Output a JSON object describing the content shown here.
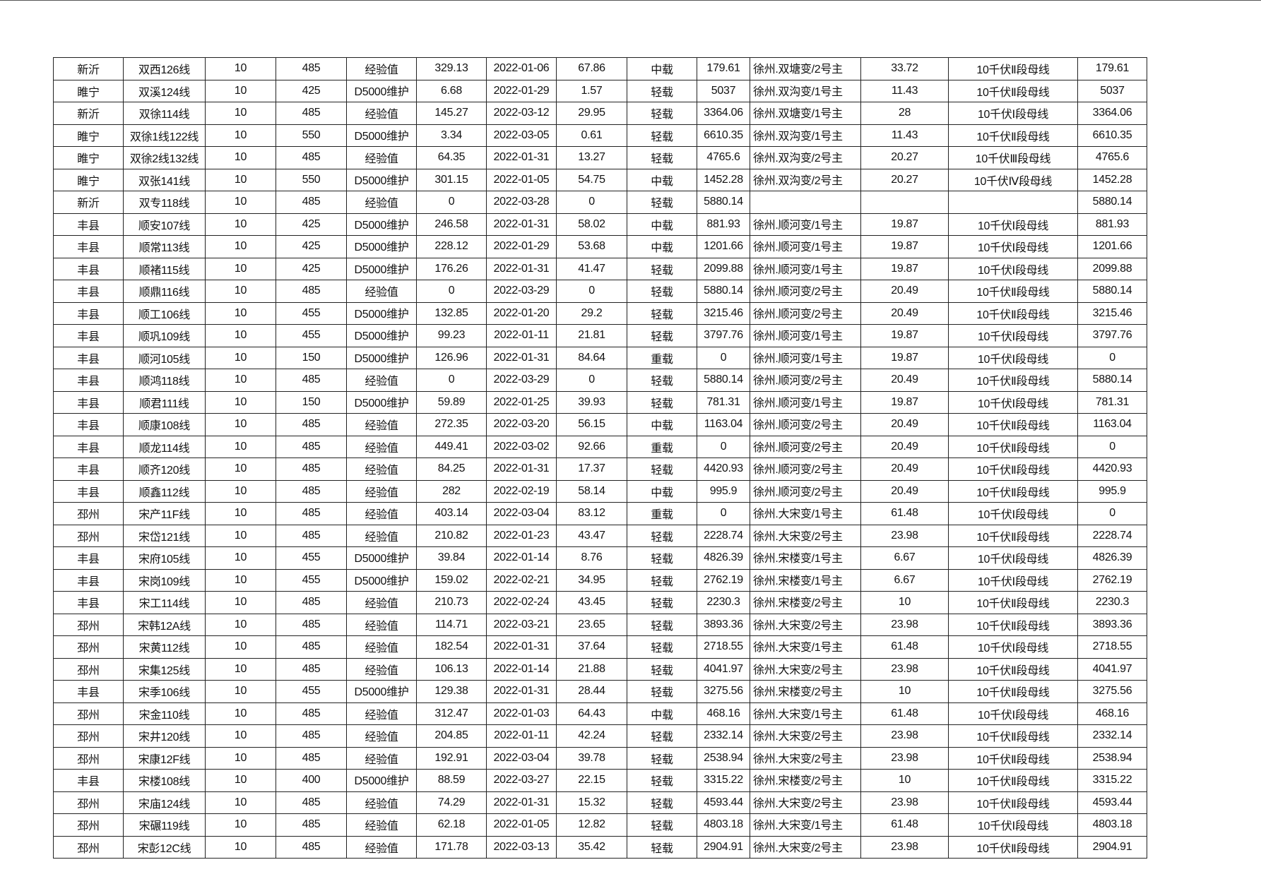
{
  "table": {
    "rows": [
      [
        "新沂",
        "双西126线",
        "10",
        "485",
        "经验值",
        "329.13",
        "2022-01-06",
        "67.86",
        "中载",
        "179.61",
        "徐州.双塘变/2号主",
        "33.72",
        "10千伏Ⅱ段母线",
        "179.61"
      ],
      [
        "睢宁",
        "双溪124线",
        "10",
        "425",
        "D5000维护",
        "6.68",
        "2022-01-29",
        "1.57",
        "轻载",
        "5037",
        "徐州.双沟变/1号主",
        "11.43",
        "10千伏Ⅱ段母线",
        "5037"
      ],
      [
        "新沂",
        "双徐114线",
        "10",
        "485",
        "经验值",
        "145.27",
        "2022-03-12",
        "29.95",
        "轻载",
        "3364.06",
        "徐州.双塘变/1号主",
        "28",
        "10千伏Ⅰ段母线",
        "3364.06"
      ],
      [
        "睢宁",
        "双徐1线122线",
        "10",
        "550",
        "D5000维护",
        "3.34",
        "2022-03-05",
        "0.61",
        "轻载",
        "6610.35",
        "徐州.双沟变/1号主",
        "11.43",
        "10千伏Ⅱ段母线",
        "6610.35"
      ],
      [
        "睢宁",
        "双徐2线132线",
        "10",
        "485",
        "经验值",
        "64.35",
        "2022-01-31",
        "13.27",
        "轻载",
        "4765.6",
        "徐州.双沟变/2号主",
        "20.27",
        "10千伏Ⅲ段母线",
        "4765.6"
      ],
      [
        "睢宁",
        "双张141线",
        "10",
        "550",
        "D5000维护",
        "301.15",
        "2022-01-05",
        "54.75",
        "中载",
        "1452.28",
        "徐州.双沟变/2号主",
        "20.27",
        "10千伏Ⅳ段母线",
        "1452.28"
      ],
      [
        "新沂",
        "双专118线",
        "10",
        "485",
        "经验值",
        "0",
        "2022-03-28",
        "0",
        "轻载",
        "5880.14",
        "",
        "",
        "",
        "5880.14"
      ],
      [
        "丰县",
        "顺安107线",
        "10",
        "425",
        "D5000维护",
        "246.58",
        "2022-01-31",
        "58.02",
        "中载",
        "881.93",
        "徐州.顺河变/1号主",
        "19.87",
        "10千伏Ⅰ段母线",
        "881.93"
      ],
      [
        "丰县",
        "顺常113线",
        "10",
        "425",
        "D5000维护",
        "228.12",
        "2022-01-29",
        "53.68",
        "中载",
        "1201.66",
        "徐州.顺河变/1号主",
        "19.87",
        "10千伏Ⅰ段母线",
        "1201.66"
      ],
      [
        "丰县",
        "顺褚115线",
        "10",
        "425",
        "D5000维护",
        "176.26",
        "2022-01-31",
        "41.47",
        "轻载",
        "2099.88",
        "徐州.顺河变/1号主",
        "19.87",
        "10千伏Ⅰ段母线",
        "2099.88"
      ],
      [
        "丰县",
        "顺鼎116线",
        "10",
        "485",
        "经验值",
        "0",
        "2022-03-29",
        "0",
        "轻载",
        "5880.14",
        "徐州.顺河变/2号主",
        "20.49",
        "10千伏Ⅱ段母线",
        "5880.14"
      ],
      [
        "丰县",
        "顺工106线",
        "10",
        "455",
        "D5000维护",
        "132.85",
        "2022-01-20",
        "29.2",
        "轻载",
        "3215.46",
        "徐州.顺河变/2号主",
        "20.49",
        "10千伏Ⅱ段母线",
        "3215.46"
      ],
      [
        "丰县",
        "顺巩109线",
        "10",
        "455",
        "D5000维护",
        "99.23",
        "2022-01-11",
        "21.81",
        "轻载",
        "3797.76",
        "徐州.顺河变/1号主",
        "19.87",
        "10千伏Ⅰ段母线",
        "3797.76"
      ],
      [
        "丰县",
        "顺河105线",
        "10",
        "150",
        "D5000维护",
        "126.96",
        "2022-01-31",
        "84.64",
        "重载",
        "0",
        "徐州.顺河变/1号主",
        "19.87",
        "10千伏Ⅰ段母线",
        "0"
      ],
      [
        "丰县",
        "顺鸿118线",
        "10",
        "485",
        "经验值",
        "0",
        "2022-03-29",
        "0",
        "轻载",
        "5880.14",
        "徐州.顺河变/2号主",
        "20.49",
        "10千伏Ⅱ段母线",
        "5880.14"
      ],
      [
        "丰县",
        "顺君111线",
        "10",
        "150",
        "D5000维护",
        "59.89",
        "2022-01-25",
        "39.93",
        "轻载",
        "781.31",
        "徐州.顺河变/1号主",
        "19.87",
        "10千伏Ⅰ段母线",
        "781.31"
      ],
      [
        "丰县",
        "顺康108线",
        "10",
        "485",
        "经验值",
        "272.35",
        "2022-03-20",
        "56.15",
        "中载",
        "1163.04",
        "徐州.顺河变/2号主",
        "20.49",
        "10千伏Ⅱ段母线",
        "1163.04"
      ],
      [
        "丰县",
        "顺龙114线",
        "10",
        "485",
        "经验值",
        "449.41",
        "2022-03-02",
        "92.66",
        "重载",
        "0",
        "徐州.顺河变/2号主",
        "20.49",
        "10千伏Ⅱ段母线",
        "0"
      ],
      [
        "丰县",
        "顺齐120线",
        "10",
        "485",
        "经验值",
        "84.25",
        "2022-01-31",
        "17.37",
        "轻载",
        "4420.93",
        "徐州.顺河变/2号主",
        "20.49",
        "10千伏Ⅱ段母线",
        "4420.93"
      ],
      [
        "丰县",
        "顺鑫112线",
        "10",
        "485",
        "经验值",
        "282",
        "2022-02-19",
        "58.14",
        "中载",
        "995.9",
        "徐州.顺河变/2号主",
        "20.49",
        "10千伏Ⅱ段母线",
        "995.9"
      ],
      [
        "邳州",
        "宋产11F线",
        "10",
        "485",
        "经验值",
        "403.14",
        "2022-03-04",
        "83.12",
        "重载",
        "0",
        "徐州.大宋变/1号主",
        "61.48",
        "10千伏Ⅰ段母线",
        "0"
      ],
      [
        "邳州",
        "宋岱121线",
        "10",
        "485",
        "经验值",
        "210.82",
        "2022-01-23",
        "43.47",
        "轻载",
        "2228.74",
        "徐州.大宋变/2号主",
        "23.98",
        "10千伏Ⅱ段母线",
        "2228.74"
      ],
      [
        "丰县",
        "宋府105线",
        "10",
        "455",
        "D5000维护",
        "39.84",
        "2022-01-14",
        "8.76",
        "轻载",
        "4826.39",
        "徐州.宋楼变/1号主",
        "6.67",
        "10千伏Ⅰ段母线",
        "4826.39"
      ],
      [
        "丰县",
        "宋岗109线",
        "10",
        "455",
        "D5000维护",
        "159.02",
        "2022-02-21",
        "34.95",
        "轻载",
        "2762.19",
        "徐州.宋楼变/1号主",
        "6.67",
        "10千伏Ⅰ段母线",
        "2762.19"
      ],
      [
        "丰县",
        "宋工114线",
        "10",
        "485",
        "经验值",
        "210.73",
        "2022-02-24",
        "43.45",
        "轻载",
        "2230.3",
        "徐州.宋楼变/2号主",
        "10",
        "10千伏Ⅱ段母线",
        "2230.3"
      ],
      [
        "邳州",
        "宋韩12A线",
        "10",
        "485",
        "经验值",
        "114.71",
        "2022-03-21",
        "23.65",
        "轻载",
        "3893.36",
        "徐州.大宋变/2号主",
        "23.98",
        "10千伏Ⅱ段母线",
        "3893.36"
      ],
      [
        "邳州",
        "宋黄112线",
        "10",
        "485",
        "经验值",
        "182.54",
        "2022-01-31",
        "37.64",
        "轻载",
        "2718.55",
        "徐州.大宋变/1号主",
        "61.48",
        "10千伏Ⅰ段母线",
        "2718.55"
      ],
      [
        "邳州",
        "宋集125线",
        "10",
        "485",
        "经验值",
        "106.13",
        "2022-01-14",
        "21.88",
        "轻载",
        "4041.97",
        "徐州.大宋变/2号主",
        "23.98",
        "10千伏Ⅱ段母线",
        "4041.97"
      ],
      [
        "丰县",
        "宋季106线",
        "10",
        "455",
        "D5000维护",
        "129.38",
        "2022-01-31",
        "28.44",
        "轻载",
        "3275.56",
        "徐州.宋楼变/2号主",
        "10",
        "10千伏Ⅱ段母线",
        "3275.56"
      ],
      [
        "邳州",
        "宋金110线",
        "10",
        "485",
        "经验值",
        "312.47",
        "2022-01-03",
        "64.43",
        "中载",
        "468.16",
        "徐州.大宋变/1号主",
        "61.48",
        "10千伏Ⅰ段母线",
        "468.16"
      ],
      [
        "邳州",
        "宋井120线",
        "10",
        "485",
        "经验值",
        "204.85",
        "2022-01-11",
        "42.24",
        "轻载",
        "2332.14",
        "徐州.大宋变/2号主",
        "23.98",
        "10千伏Ⅱ段母线",
        "2332.14"
      ],
      [
        "邳州",
        "宋康12F线",
        "10",
        "485",
        "经验值",
        "192.91",
        "2022-03-04",
        "39.78",
        "轻载",
        "2538.94",
        "徐州.大宋变/2号主",
        "23.98",
        "10千伏Ⅱ段母线",
        "2538.94"
      ],
      [
        "丰县",
        "宋楼108线",
        "10",
        "400",
        "D5000维护",
        "88.59",
        "2022-03-27",
        "22.15",
        "轻载",
        "3315.22",
        "徐州.宋楼变/2号主",
        "10",
        "10千伏Ⅱ段母线",
        "3315.22"
      ],
      [
        "邳州",
        "宋庙124线",
        "10",
        "485",
        "经验值",
        "74.29",
        "2022-01-31",
        "15.32",
        "轻载",
        "4593.44",
        "徐州.大宋变/2号主",
        "23.98",
        "10千伏Ⅱ段母线",
        "4593.44"
      ],
      [
        "邳州",
        "宋碾119线",
        "10",
        "485",
        "经验值",
        "62.18",
        "2022-01-05",
        "12.82",
        "轻载",
        "4803.18",
        "徐州.大宋变/1号主",
        "61.48",
        "10千伏Ⅰ段母线",
        "4803.18"
      ],
      [
        "邳州",
        "宋彭12C线",
        "10",
        "485",
        "经验值",
        "171.78",
        "2022-03-13",
        "35.42",
        "轻载",
        "2904.91",
        "徐州.大宋变/2号主",
        "23.98",
        "10千伏Ⅱ段母线",
        "2904.91"
      ]
    ]
  }
}
